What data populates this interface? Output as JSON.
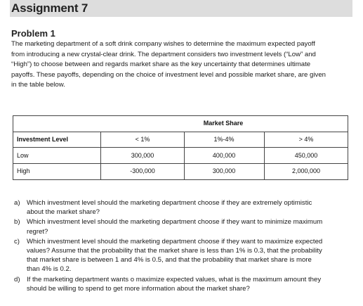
{
  "heading": {
    "title": "Assignment 7",
    "problem": "Problem 1"
  },
  "intro_lines": [
    "The marketing department of a soft drink company wishes to determine the maximum expected payoff",
    "from introducing a new crystal-clear drink. The department considers two investment levels (“Low” and",
    "“High”) to choose between and regards market share as the key uncertainty that determines ultimate",
    "payoffs. These payoffs, depending on the choice of investment level and possible market share, are given",
    "in the table below."
  ],
  "table": {
    "group_header": "Market Share",
    "row_header": "Investment Level",
    "columns": [
      "< 1%",
      "1%-4%",
      "> 4%"
    ],
    "rows": [
      {
        "label": "Low",
        "values": [
          "300,000",
          "400,000",
          "450,000"
        ]
      },
      {
        "label": "High",
        "values": [
          "-300,000",
          "300,000",
          "2,000,000"
        ]
      }
    ]
  },
  "questions": [
    {
      "letter": "a)",
      "lines": [
        "Which investment level should the marketing department choose if they are extremely optimistic",
        "about the market share?"
      ]
    },
    {
      "letter": "b)",
      "lines": [
        "Which investment level should the marketing department choose if they want to minimize maximum",
        "regret?"
      ]
    },
    {
      "letter": "c)",
      "lines": [
        "Which investment level should the marketing department choose if they want to maximize expected",
        "values? Assume that the probability that the market share is less than 1% is 0.3, that the probability",
        "that market share is between 1 and 4% is 0.5, and that the probability that market share is more",
        "than 4% is 0.2."
      ]
    },
    {
      "letter": "d)",
      "lines": [
        "If the marketing department wants o maximize expected values, what is the maximum amount they",
        "should be willing to spend to get more information about the market share?"
      ]
    }
  ],
  "colors": {
    "title_bar": "#dddddd",
    "text": "#111111",
    "rule": "#444444"
  }
}
